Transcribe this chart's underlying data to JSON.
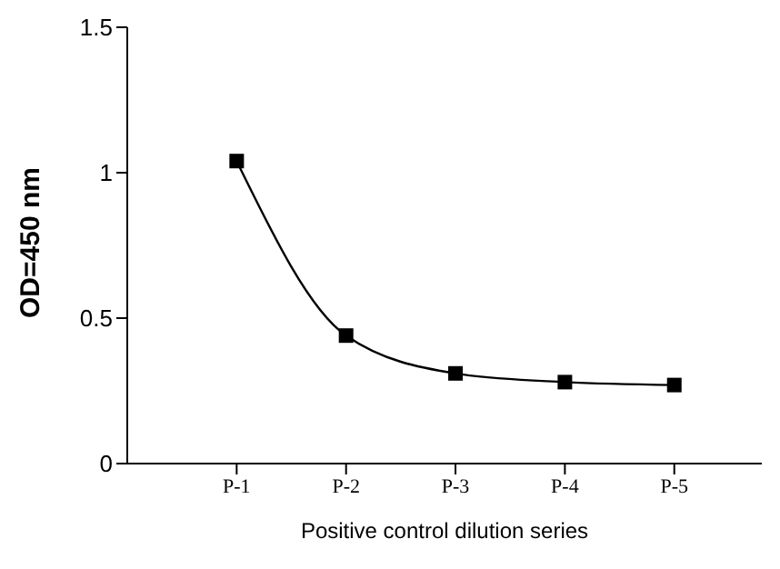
{
  "chart_data": {
    "type": "line",
    "xlabel": "Positive control dilution series",
    "ylabel": "OD=450 nm",
    "categories": [
      "P-1",
      "P-2",
      "P-3",
      "P-4",
      "P-5"
    ],
    "series": [
      {
        "color": "#000000",
        "values": [
          1.04,
          0.44,
          0.31,
          0.28,
          0.27
        ]
      }
    ],
    "ylim": [
      0,
      1.5
    ],
    "yticks": [
      0,
      0.5,
      1,
      1.5
    ],
    "marker": "square",
    "line_style": "solid",
    "grid": false,
    "legend": false
  }
}
